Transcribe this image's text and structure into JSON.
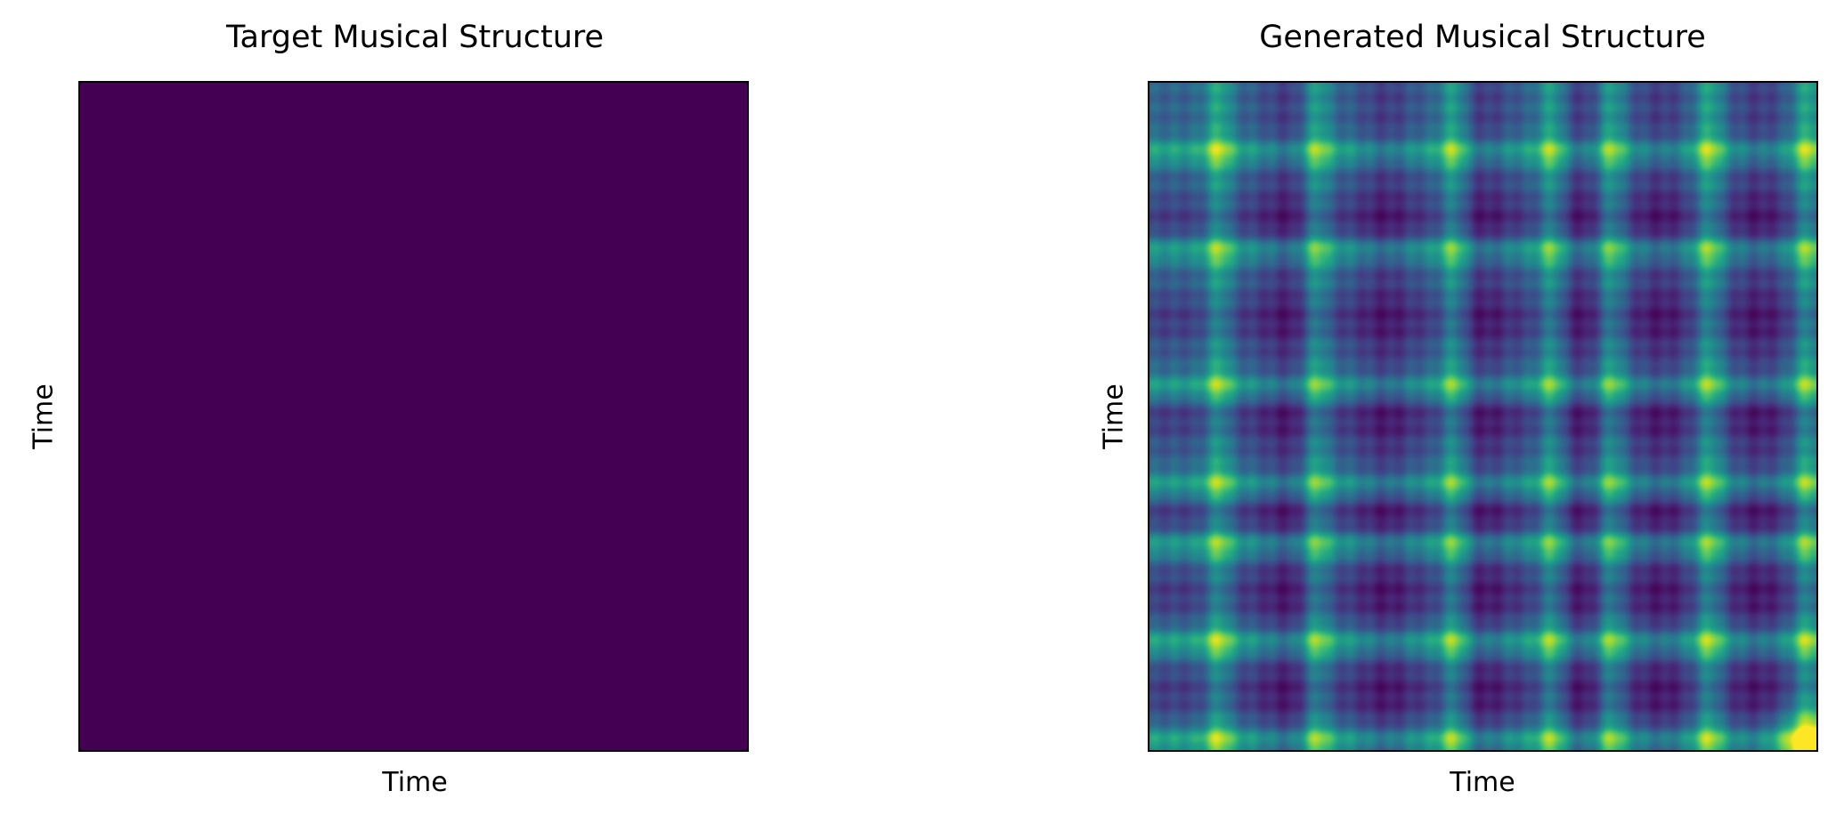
{
  "chart_data": [
    {
      "type": "heatmap",
      "title": "Target Musical Structure",
      "xlabel": "Time",
      "ylabel": "Time",
      "colormap": "viridis",
      "fill_value": 0.0,
      "fill_color": "#440154",
      "ticks": false
    },
    {
      "type": "heatmap",
      "title": "Generated Musical Structure",
      "xlabel": "Time",
      "ylabel": "Time",
      "colormap": "viridis",
      "ticks": false,
      "grid_size": 34,
      "bright_lines": [
        4,
        9,
        16,
        21,
        24,
        29,
        34
      ],
      "dark_blocks": [
        7,
        12,
        17,
        22,
        26,
        31
      ],
      "peak": "bottom-right"
    }
  ]
}
